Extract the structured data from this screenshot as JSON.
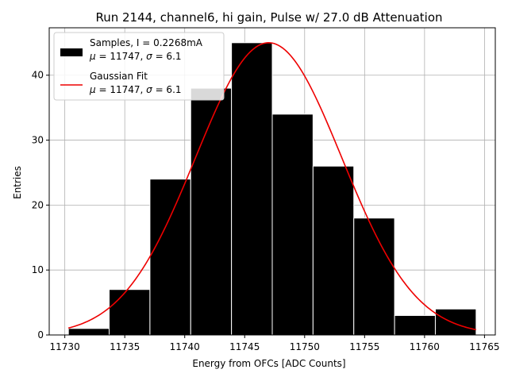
{
  "chart_data": {
    "type": "bar",
    "title": "Run 2144, channel6, hi gain, Pulse w/ 27.0 dB Attenuation",
    "xlabel": "Energy from OFCs [ADC Counts]",
    "ylabel": "Entries",
    "xlim": [
      11728.7,
      11765.9
    ],
    "ylim": [
      0,
      47.3
    ],
    "xticks": [
      11730,
      11735,
      11740,
      11745,
      11750,
      11755,
      11760,
      11765
    ],
    "yticks": [
      0,
      10,
      20,
      30,
      40
    ],
    "grid": true,
    "legend_position": "top-left",
    "bar_color": "#000000",
    "fit_color": "#ee0000",
    "bins": [
      {
        "left": 11730.3,
        "right": 11733.7,
        "count": 1
      },
      {
        "left": 11733.7,
        "right": 11737.1,
        "count": 7
      },
      {
        "left": 11737.1,
        "right": 11740.5,
        "count": 24
      },
      {
        "left": 11740.5,
        "right": 11743.9,
        "count": 38
      },
      {
        "left": 11743.9,
        "right": 11747.3,
        "count": 45
      },
      {
        "left": 11747.3,
        "right": 11750.7,
        "count": 34
      },
      {
        "left": 11750.7,
        "right": 11754.1,
        "count": 26
      },
      {
        "left": 11754.1,
        "right": 11757.5,
        "count": 18
      },
      {
        "left": 11757.5,
        "right": 11760.9,
        "count": 3
      },
      {
        "left": 11760.9,
        "right": 11764.3,
        "count": 4
      }
    ],
    "fit": {
      "mu": 11747,
      "sigma": 6.1,
      "amplitude": 45,
      "x_min": 11730.3,
      "x_max": 11764.3
    },
    "legend": [
      {
        "kind": "bar",
        "line1": "Samples, I = 0.2268mA",
        "mu_symbol": "μ",
        "mu_text": " = 11747, ",
        "sigma_symbol": "σ",
        "sigma_text": " = 6.1"
      },
      {
        "kind": "line",
        "line1": "Gaussian Fit",
        "mu_symbol": "μ",
        "mu_text": " = 11747, ",
        "sigma_symbol": "σ",
        "sigma_text": " = 6.1"
      }
    ]
  }
}
